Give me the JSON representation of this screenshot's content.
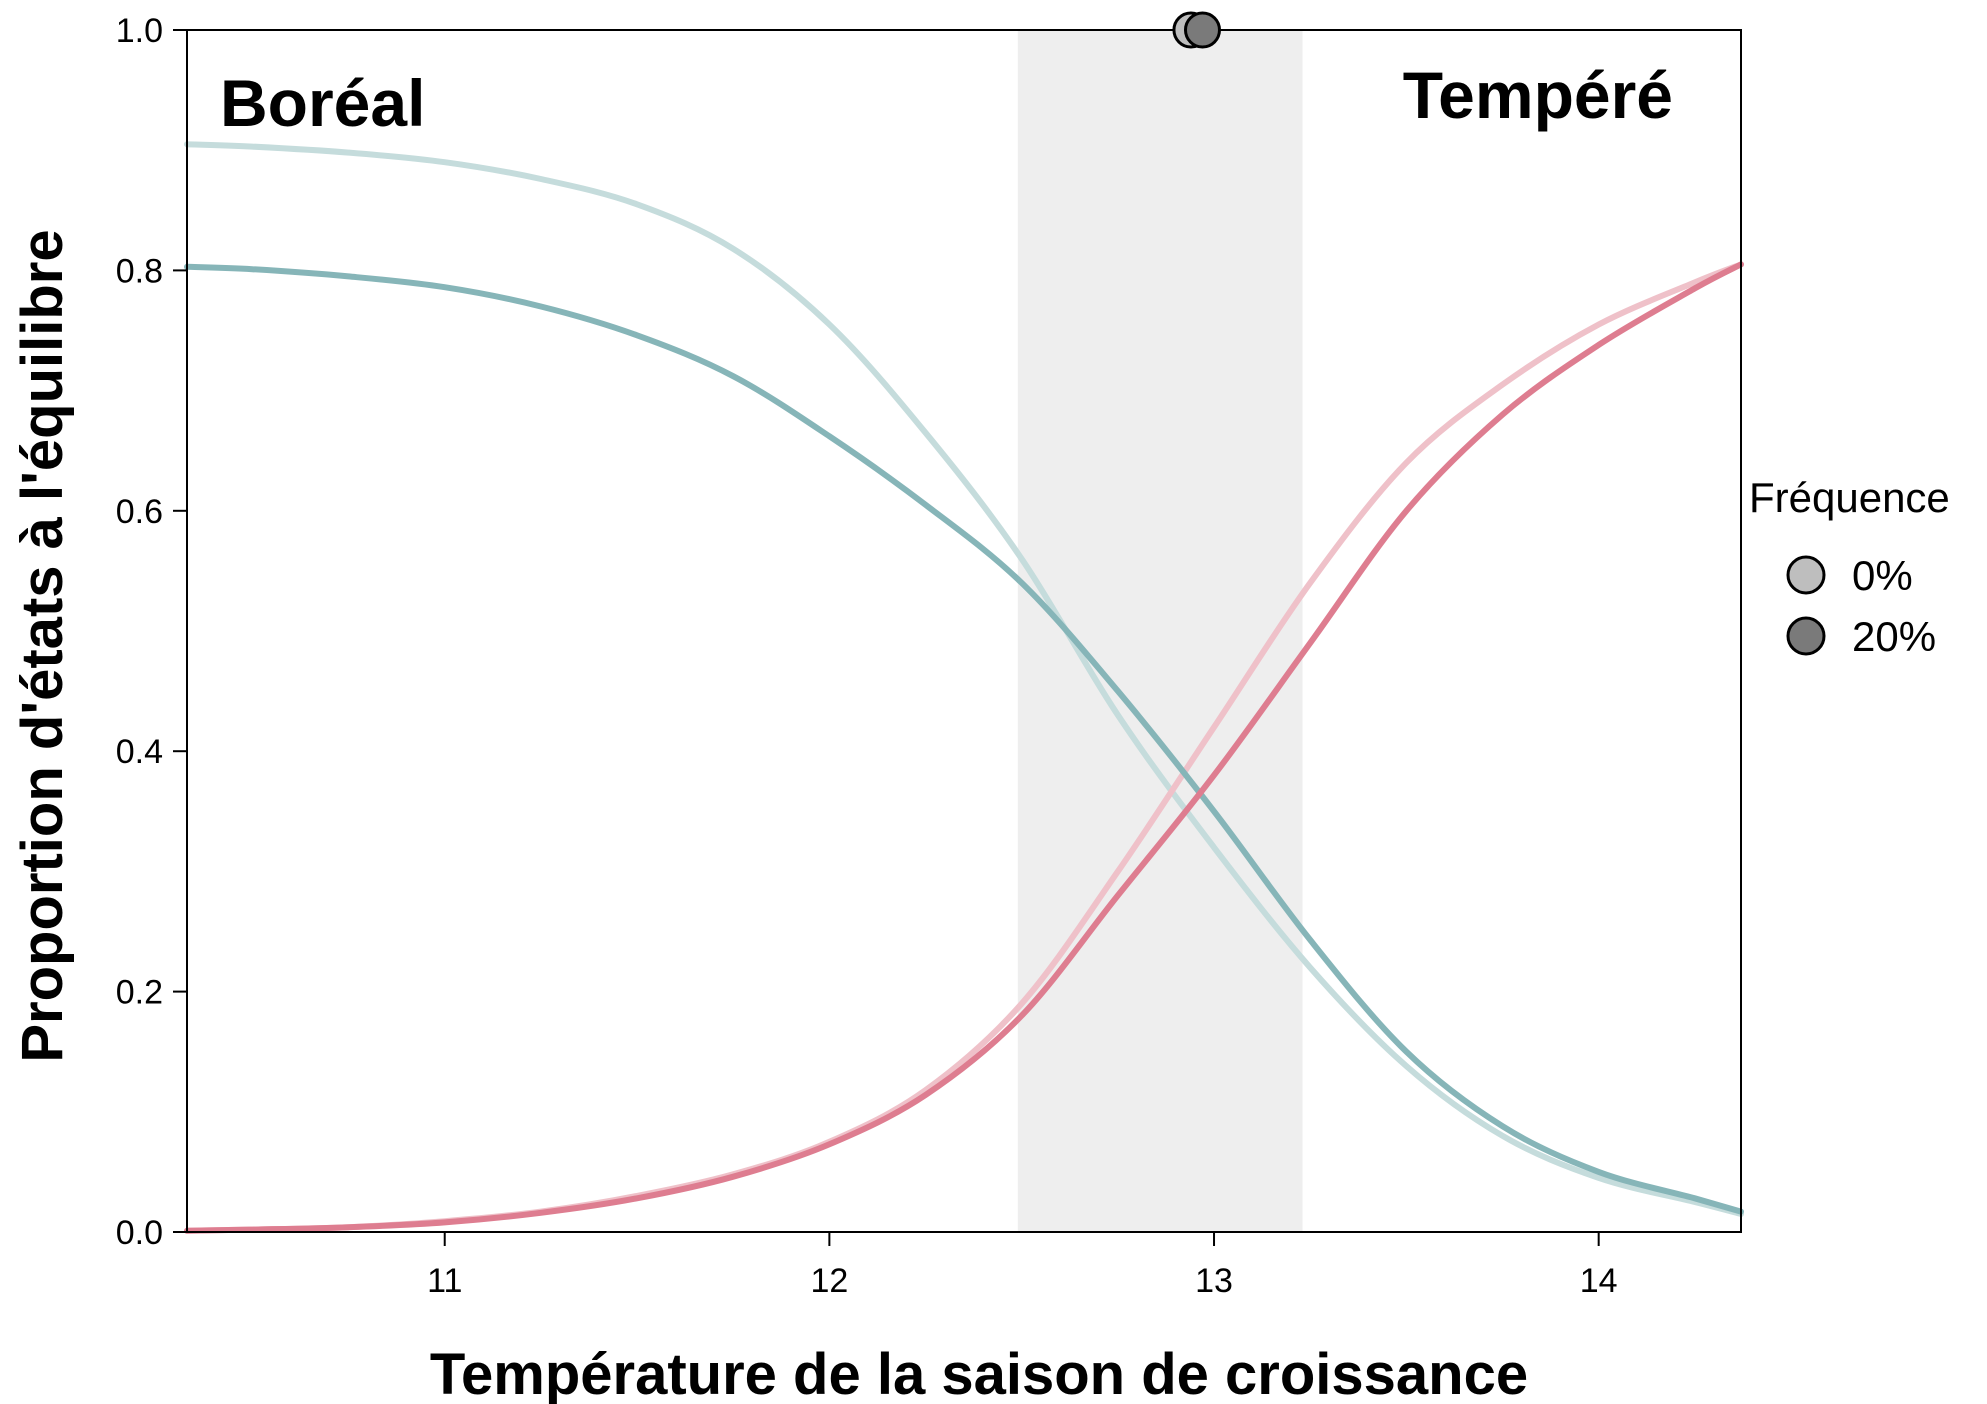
{
  "chart_data": {
    "type": "line",
    "xlabel": "Température de la saison de croissance",
    "ylabel": "Proportion d'états à l'équilibre",
    "xlim": [
      10.33,
      14.37
    ],
    "ylim": [
      0,
      1
    ],
    "xticks": [
      11,
      12,
      13,
      14
    ],
    "yticks": [
      0.0,
      0.2,
      0.4,
      0.6,
      0.8,
      1.0
    ],
    "xtick_labels": [
      "11",
      "12",
      "13",
      "14"
    ],
    "ytick_labels": [
      "0.0",
      "0.2",
      "0.4",
      "0.6",
      "0.8",
      "1.0"
    ],
    "grid": false,
    "annotations": {
      "left": "Boréal",
      "right": "Tempéré"
    },
    "shaded_band": {
      "x0": 12.49,
      "x1": 13.23,
      "color": "#eeeeee"
    },
    "colors": {
      "boreal_0": "#c5dcdc",
      "boreal_20": "#86b5b8",
      "temperate_0": "#efc1c9",
      "temperate_20": "#de7d90"
    },
    "x": [
      10.33,
      10.5,
      10.75,
      11.0,
      11.25,
      11.5,
      11.75,
      12.0,
      12.25,
      12.5,
      12.75,
      13.0,
      13.25,
      13.5,
      13.75,
      14.0,
      14.25,
      14.37
    ],
    "series": [
      {
        "group": "boreal",
        "frequency": "0%",
        "values": [
          0.905,
          0.903,
          0.898,
          0.89,
          0.876,
          0.855,
          0.818,
          0.755,
          0.665,
          0.56,
          0.43,
          0.32,
          0.22,
          0.138,
          0.08,
          0.045,
          0.025,
          0.015
        ]
      },
      {
        "group": "boreal",
        "frequency": "20%",
        "values": [
          0.803,
          0.801,
          0.795,
          0.786,
          0.77,
          0.746,
          0.712,
          0.662,
          0.605,
          0.54,
          0.45,
          0.35,
          0.243,
          0.15,
          0.088,
          0.05,
          0.028,
          0.017
        ]
      },
      {
        "group": "temperate",
        "frequency": "0%",
        "values": [
          0.001,
          0.002,
          0.004,
          0.009,
          0.017,
          0.03,
          0.048,
          0.075,
          0.118,
          0.19,
          0.3,
          0.42,
          0.54,
          0.64,
          0.705,
          0.755,
          0.79,
          0.805
        ]
      },
      {
        "group": "temperate",
        "frequency": "20%",
        "values": [
          0.001,
          0.002,
          0.004,
          0.008,
          0.016,
          0.028,
          0.046,
          0.073,
          0.114,
          0.18,
          0.28,
          0.38,
          0.49,
          0.6,
          0.68,
          0.738,
          0.785,
          0.805
        ]
      }
    ],
    "points": [
      {
        "frequency": "0%",
        "x": 12.94,
        "y": 1.0,
        "color": "#bebebe"
      },
      {
        "frequency": "20%",
        "x": 12.97,
        "y": 1.0,
        "color": "#7a7a7a"
      }
    ],
    "legend": {
      "title": "Fréquence",
      "position": "right",
      "items": [
        {
          "label": "0%",
          "color": "#bebebe"
        },
        {
          "label": "20%",
          "color": "#7a7a7a"
        }
      ]
    }
  }
}
